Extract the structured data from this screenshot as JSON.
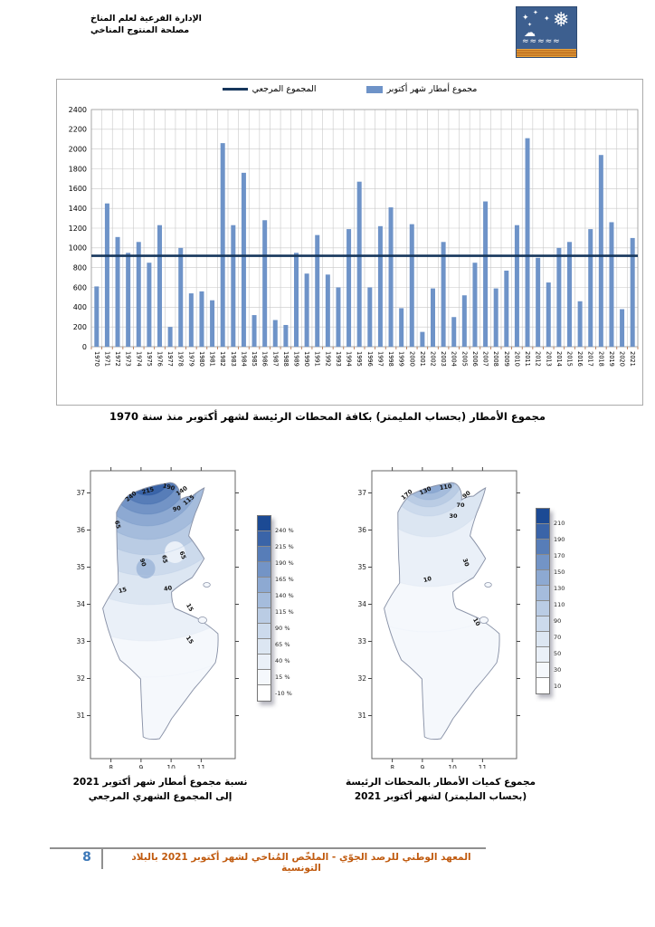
{
  "header": {
    "line1": "الإدارة الفرعية لعلم المناخ",
    "line2": "مصلحة المنتوج المناخي"
  },
  "logo": {
    "name": "institut-national-de-la-meteorologie-logo"
  },
  "chart_data": [
    {
      "type": "bar",
      "caption": "مجموع الأمطار (بحساب المليمتر) بكافة المحطات الرئيسة لشهر أكتوبر منذ سنة 1970",
      "legend": [
        {
          "label": "مجموع أمطار شهر أكتوبر",
          "marker": "bar"
        },
        {
          "label": "المجموع المرجعي",
          "marker": "line"
        }
      ],
      "bar_color": "#6E93C8",
      "reference_color": "#16365C",
      "reference_value": 920,
      "ylim": [
        0,
        2400
      ],
      "ytick_step": 200,
      "grid": true,
      "categories": [
        "1970",
        "1971",
        "1972",
        "1973",
        "1974",
        "1975",
        "1976",
        "1977",
        "1978",
        "1979",
        "1980",
        "1981",
        "1982",
        "1983",
        "1984",
        "1985",
        "1986",
        "1987",
        "1988",
        "1989",
        "1990",
        "1991",
        "1992",
        "1993",
        "1994",
        "1995",
        "1996",
        "1997",
        "1998",
        "1999",
        "2000",
        "2001",
        "2002",
        "2003",
        "2004",
        "2005",
        "2006",
        "2007",
        "2008",
        "2009",
        "2010",
        "2011",
        "2012",
        "2013",
        "2014",
        "2015",
        "2016",
        "2017",
        "2018",
        "2019",
        "2020",
        "2021"
      ],
      "values": [
        610,
        1450,
        1110,
        950,
        1060,
        850,
        1230,
        200,
        1000,
        540,
        560,
        470,
        2060,
        1230,
        1760,
        320,
        1280,
        270,
        220,
        950,
        740,
        1130,
        730,
        600,
        1190,
        1670,
        600,
        1220,
        1410,
        390,
        1240,
        150,
        590,
        1060,
        300,
        520,
        850,
        1470,
        590,
        770,
        1230,
        2110,
        900,
        650,
        1000,
        1060,
        460,
        1190,
        1940,
        1260,
        380,
        1100
      ]
    },
    {
      "type": "heatmap",
      "subtype": "contour-map",
      "region": "Tunisia",
      "unit": "%",
      "caption_line1": "نسبة مجموع أمطار شهر أكتوبر 2021",
      "caption_line2": "إلى المجموع الشهري المرجعي",
      "lat_ticks": [
        "37",
        "36",
        "35",
        "34",
        "33",
        "32",
        "31"
      ],
      "lon_ticks": [
        "8",
        "9",
        "10",
        "11"
      ],
      "colorbar_labels": [
        "240 %",
        "215 %",
        "190 %",
        "165 %",
        "140 %",
        "115 %",
        "90 %",
        "65 %",
        "40 %",
        "15 %",
        "-10 %"
      ],
      "contour_labels": [
        "240",
        "215",
        "190",
        "140",
        "115",
        "90",
        "65",
        "90",
        "65",
        "65",
        "15",
        "40",
        "15",
        "15"
      ]
    },
    {
      "type": "heatmap",
      "subtype": "contour-map",
      "region": "Tunisia",
      "unit": "mm",
      "caption_line1": "مجموع كميات الأمطار بالمحطات الرئيسة",
      "caption_line2": "(بحساب المليمتر)  لشهر أكتوبر 2021",
      "lat_ticks": [
        "37",
        "36",
        "35",
        "34",
        "33",
        "32",
        "31"
      ],
      "lon_ticks": [
        "8",
        "9",
        "10",
        "11"
      ],
      "colorbar_labels": [
        "210",
        "190",
        "170",
        "150",
        "130",
        "110",
        "90",
        "70",
        "50",
        "30",
        "10"
      ],
      "contour_labels": [
        "170",
        "130",
        "110",
        "90",
        "70",
        "30",
        "10",
        "30",
        "10"
      ]
    }
  ],
  "colors": {
    "ramp": [
      "#FFFFFF",
      "#F5F8FC",
      "#EAF0F8",
      "#DCE6F2",
      "#CCDAEC",
      "#BACCE4",
      "#A5BCDC",
      "#8DA9D2",
      "#7394C6",
      "#577DB8",
      "#3A64A8",
      "#1C4A94"
    ],
    "footer_text": "#c05a0e",
    "page_number": "#3c78b8"
  },
  "footer": {
    "page_number": "8",
    "text": "المعهد الوطني للرصد الجوّي    -    الملخّص المُناخي لشهر أكتوبر 2021 بالبلاد التونسية"
  }
}
